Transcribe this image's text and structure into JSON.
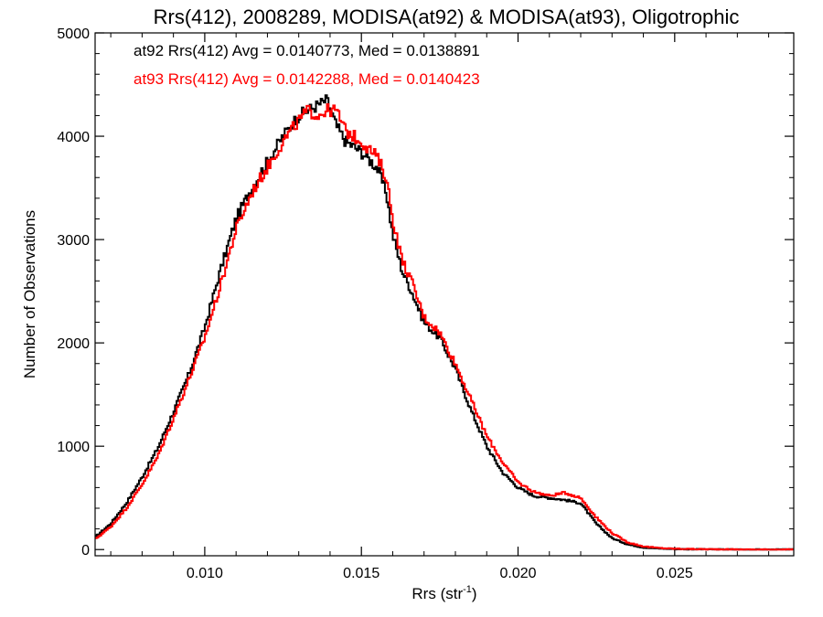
{
  "chart_data": {
    "type": "line",
    "title": "Rrs(412), 2008289, MODISA(at92) & MODISA(at93), Oligotrophic",
    "xlabel": "Rrs (str",
    "xlabel_sup": "-1",
    "xlabel_end": ")",
    "ylabel": "Number of Observations",
    "xlim": [
      0.0065,
      0.0288
    ],
    "ylim": [
      -60,
      5000
    ],
    "x_ticks": [
      0.01,
      0.015,
      0.02,
      0.025
    ],
    "x_tick_labels": [
      "0.010",
      "0.015",
      "0.020",
      "0.025"
    ],
    "y_ticks": [
      0,
      1000,
      2000,
      3000,
      4000,
      5000
    ],
    "y_tick_labels": [
      "0",
      "1000",
      "2000",
      "3000",
      "4000",
      "5000"
    ],
    "step": true,
    "annotations": [
      {
        "text": "at92 Rrs(412) Avg = 0.0140773, Med = 0.0138891",
        "color": "#000000"
      },
      {
        "text": "at93 Rrs(412) Avg = 0.0142288, Med = 0.0140423",
        "color": "#ff0000"
      }
    ],
    "series": [
      {
        "color": "#000000",
        "x": [
          0.0065,
          0.007,
          0.0075,
          0.008,
          0.0085,
          0.009,
          0.0095,
          0.01,
          0.0105,
          0.011,
          0.0115,
          0.012,
          0.0125,
          0.013,
          0.0133,
          0.0136,
          0.0139,
          0.0142,
          0.0145,
          0.015,
          0.0155,
          0.0158,
          0.016,
          0.0163,
          0.0166,
          0.017,
          0.0175,
          0.018,
          0.0185,
          0.019,
          0.0195,
          0.02,
          0.0205,
          0.021,
          0.0215,
          0.022,
          0.0225,
          0.023,
          0.0235,
          0.024,
          0.0245,
          0.025,
          0.0255,
          0.026,
          0.027,
          0.028,
          0.0288
        ],
        "y": [
          120,
          250,
          450,
          700,
          980,
          1330,
          1700,
          2150,
          2700,
          3200,
          3500,
          3750,
          4000,
          4200,
          4250,
          4300,
          4350,
          4100,
          3950,
          3850,
          3700,
          3450,
          3050,
          2700,
          2500,
          2200,
          2050,
          1750,
          1350,
          1000,
          750,
          600,
          520,
          500,
          480,
          450,
          250,
          110,
          50,
          20,
          10,
          5,
          3,
          2,
          1,
          0,
          0
        ]
      },
      {
        "color": "#ff0000",
        "x": [
          0.0065,
          0.007,
          0.0075,
          0.008,
          0.0085,
          0.009,
          0.0095,
          0.01,
          0.0105,
          0.011,
          0.0115,
          0.012,
          0.0125,
          0.013,
          0.0133,
          0.0136,
          0.0139,
          0.0142,
          0.0145,
          0.015,
          0.0155,
          0.0158,
          0.016,
          0.0163,
          0.0166,
          0.017,
          0.0175,
          0.018,
          0.0185,
          0.019,
          0.0195,
          0.02,
          0.0205,
          0.021,
          0.0215,
          0.022,
          0.0225,
          0.023,
          0.0235,
          0.024,
          0.0245,
          0.025,
          0.0255,
          0.026,
          0.027,
          0.028,
          0.0288
        ],
        "y": [
          100,
          220,
          400,
          630,
          900,
          1270,
          1650,
          2050,
          2550,
          3100,
          3450,
          3700,
          3950,
          4150,
          4250,
          4200,
          4250,
          4250,
          4050,
          3950,
          3800,
          3600,
          3200,
          2800,
          2600,
          2250,
          2100,
          1800,
          1450,
          1100,
          850,
          650,
          560,
          520,
          550,
          500,
          310,
          160,
          70,
          30,
          15,
          8,
          5,
          3,
          1,
          0,
          0
        ]
      }
    ]
  }
}
